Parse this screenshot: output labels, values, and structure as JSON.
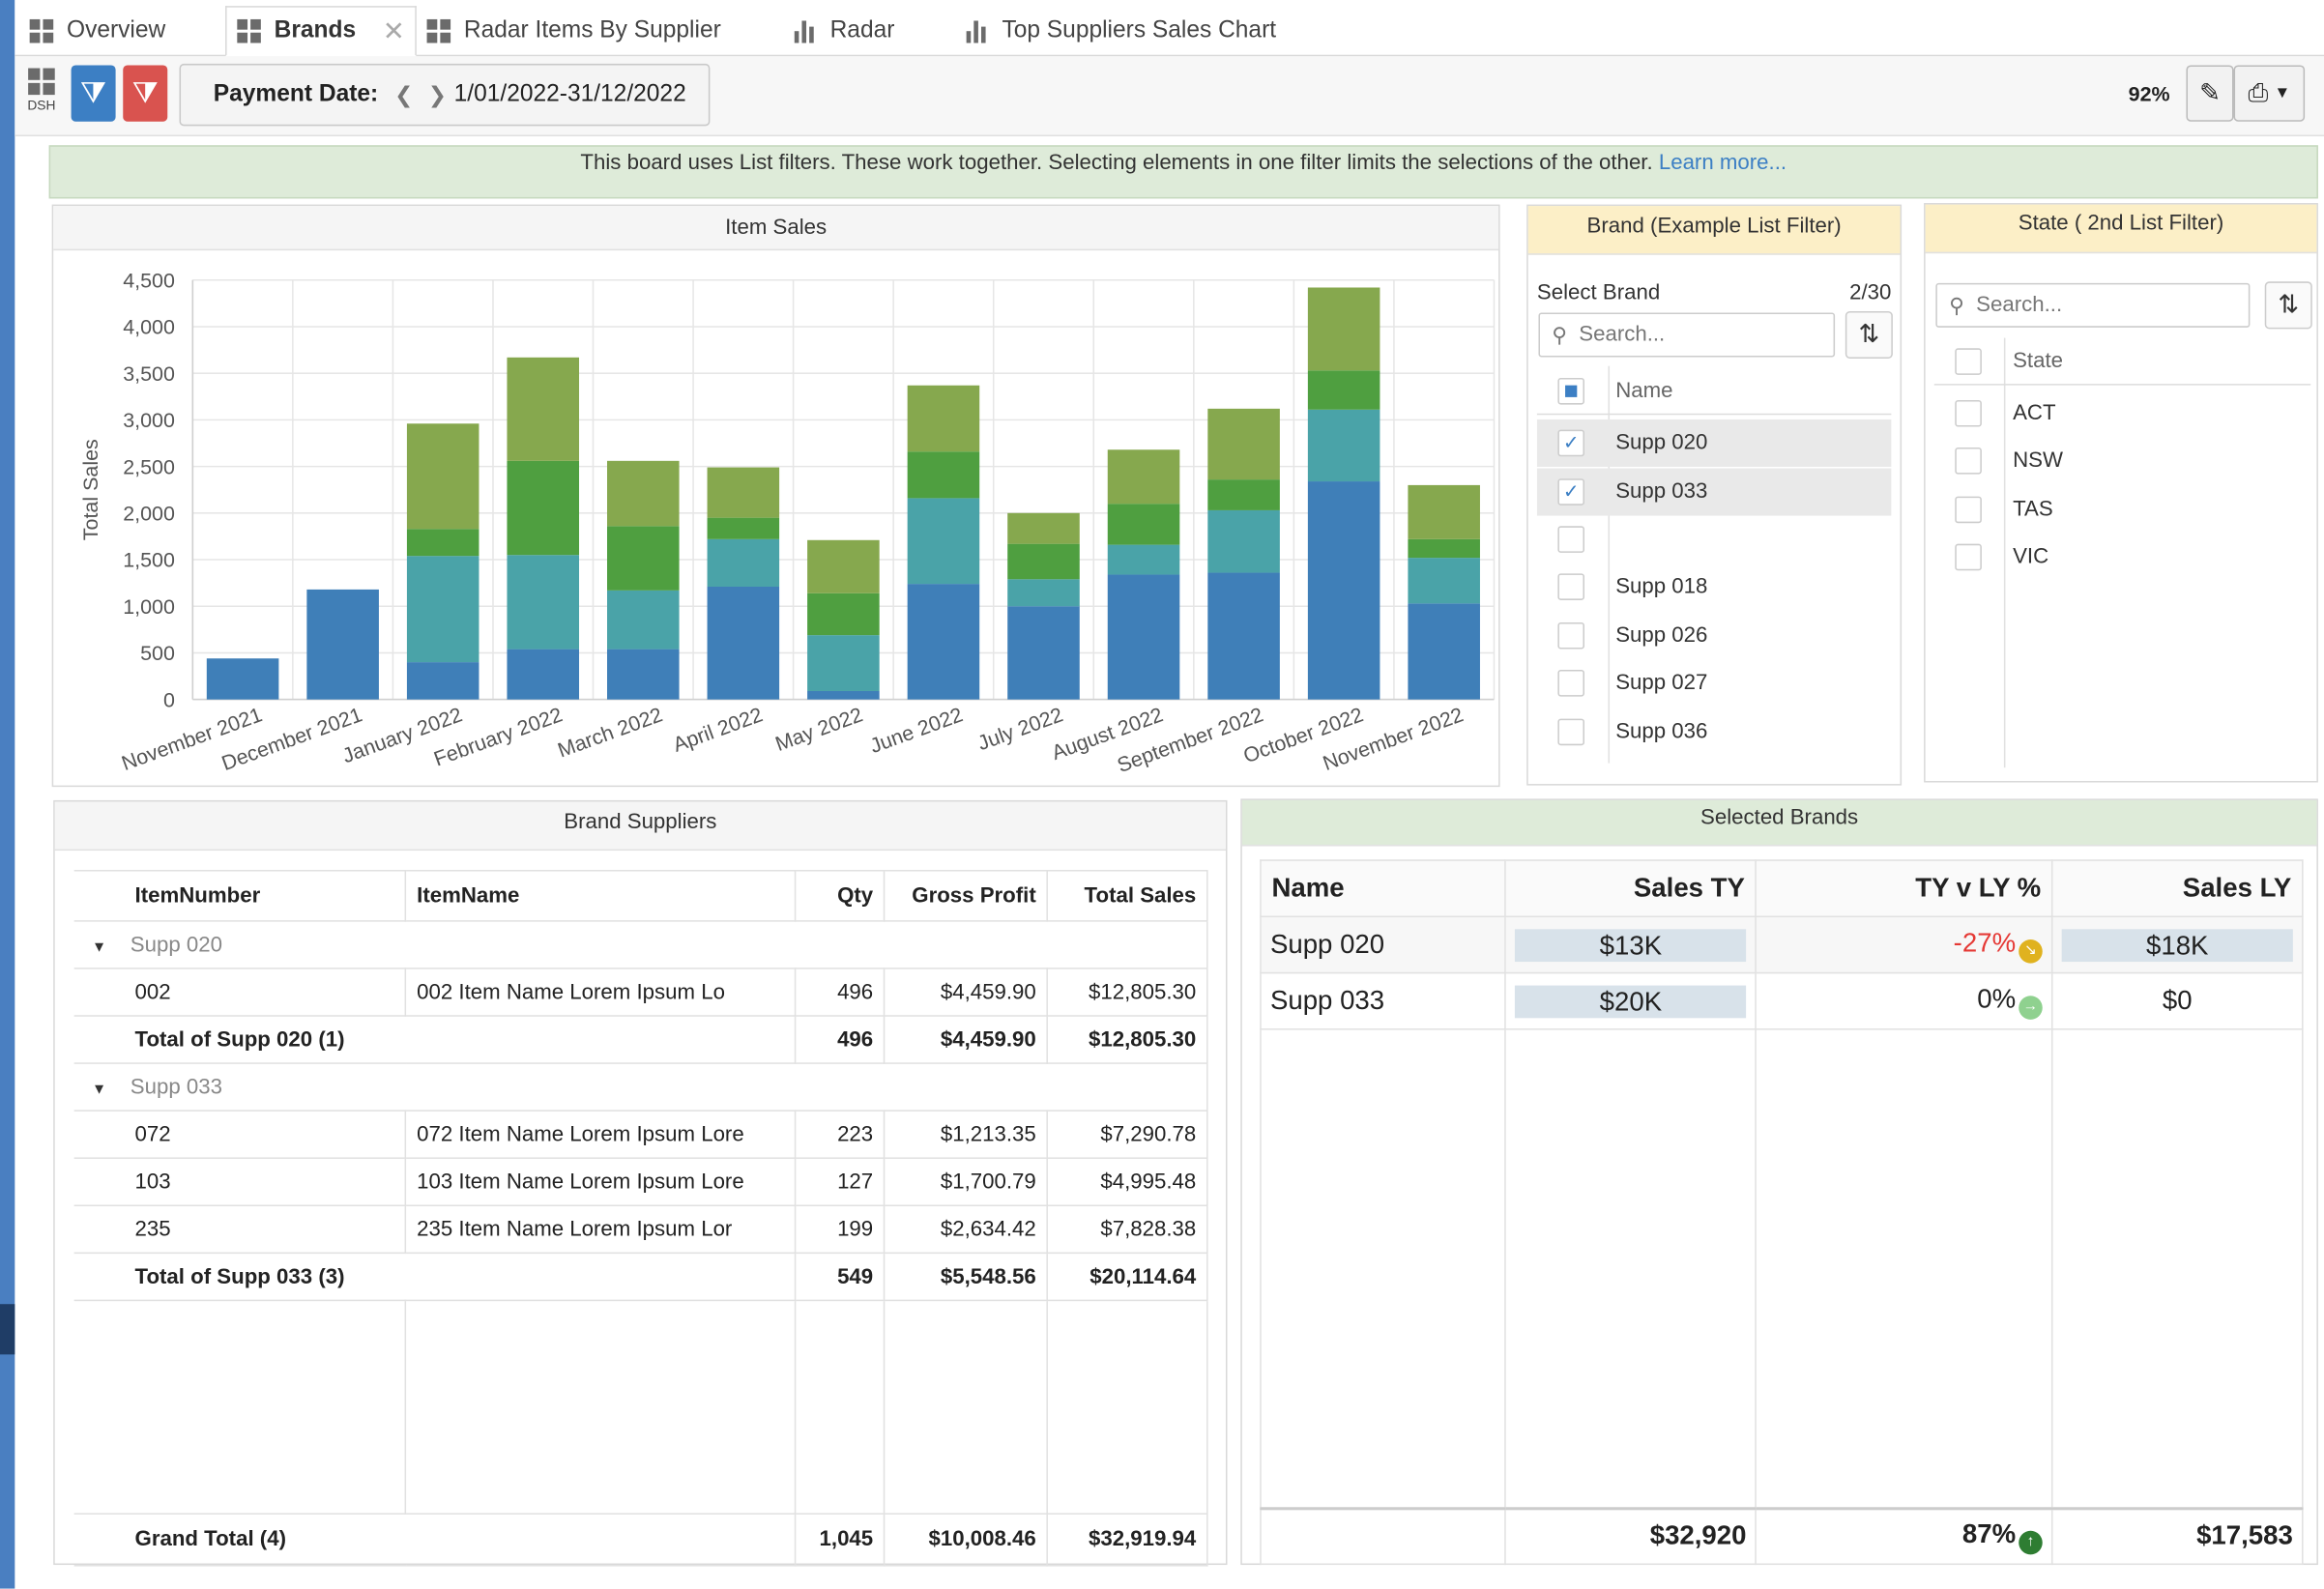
{
  "tabs": [
    {
      "label": "Overview",
      "icon": "grid-icon",
      "active": false
    },
    {
      "label": "Brands",
      "icon": "grid-icon",
      "active": true
    },
    {
      "label": "Radar Items By Supplier",
      "icon": "grid-icon",
      "active": false
    },
    {
      "label": "Radar",
      "icon": "bar-chart-icon",
      "active": false
    },
    {
      "label": "Top Suppliers Sales Chart",
      "icon": "bar-chart-icon",
      "active": false
    }
  ],
  "toolbar": {
    "dsh_label": "DSH",
    "date_label": "Payment Date:",
    "date_value": "1/01/2022-31/12/2022",
    "zoom": "92%"
  },
  "banner": {
    "text": "This board uses List filters. These work together. Selecting elements in one filter limits the selections of the other. ",
    "link": "Learn more..."
  },
  "item_sales": {
    "title": "Item Sales",
    "colors": [
      "#3f7fb8",
      "#4aa3a8",
      "#4f9f40",
      "#86a84e"
    ]
  },
  "chart_data": {
    "type": "bar",
    "stacked": true,
    "title": "Item Sales",
    "xlabel": "",
    "ylabel": "Total Sales",
    "ylim": [
      0,
      4500
    ],
    "yticks": [
      0,
      500,
      1000,
      1500,
      2000,
      2500,
      3000,
      3500,
      4000,
      4500
    ],
    "grid": true,
    "categories": [
      "November 2021",
      "December 2021",
      "January 2022",
      "February 2022",
      "March 2022",
      "April 2022",
      "May 2022",
      "June 2022",
      "July 2022",
      "August 2022",
      "September 2022",
      "October 2022",
      "November 2022"
    ],
    "series": [
      {
        "values": [
          440,
          1180,
          400,
          540,
          540,
          1210,
          90,
          1240,
          1000,
          1340,
          1360,
          2340,
          1030
        ]
      },
      {
        "values": [
          0,
          0,
          1140,
          1010,
          630,
          510,
          600,
          920,
          290,
          320,
          670,
          770,
          490
        ]
      },
      {
        "values": [
          0,
          0,
          290,
          1010,
          690,
          230,
          450,
          500,
          380,
          440,
          330,
          420,
          200
        ]
      },
      {
        "values": [
          0,
          0,
          1130,
          1110,
          700,
          540,
          570,
          710,
          330,
          580,
          760,
          890,
          580
        ]
      }
    ]
  },
  "brand_filter": {
    "title": "Brand (Example List Filter)",
    "select_label": "Select Brand",
    "count": "2/30",
    "search_placeholder": "Search...",
    "column": "Name",
    "items": [
      {
        "label": "Supp 020",
        "checked": true
      },
      {
        "label": "Supp 033",
        "checked": true
      },
      {
        "label": "",
        "checked": false
      },
      {
        "label": "Supp 018",
        "checked": false
      },
      {
        "label": "Supp 026",
        "checked": false
      },
      {
        "label": "Supp 027",
        "checked": false
      },
      {
        "label": "Supp 036",
        "checked": false
      }
    ]
  },
  "state_filter": {
    "title": "State ( 2nd List Filter)",
    "search_placeholder": "Search...",
    "column": "State",
    "items": [
      "ACT",
      "NSW",
      "TAS",
      "VIC"
    ]
  },
  "brand_suppliers": {
    "title": "Brand Suppliers",
    "columns": [
      "ItemNumber",
      "ItemName",
      "Qty",
      "Gross Profit",
      "Total Sales"
    ],
    "groups": [
      {
        "name": "Supp 020",
        "rows": [
          [
            "002",
            "002 Item Name Lorem Ipsum Lo",
            "496",
            "$4,459.90",
            "$12,805.30"
          ]
        ],
        "total": [
          "Total of Supp 020 (1)",
          "496",
          "$4,459.90",
          "$12,805.30"
        ]
      },
      {
        "name": "Supp 033",
        "rows": [
          [
            "072",
            "072 Item Name Lorem Ipsum Lore",
            "223",
            "$1,213.35",
            "$7,290.78"
          ],
          [
            "103",
            "103 Item Name Lorem Ipsum Lore",
            "127",
            "$1,700.79",
            "$4,995.48"
          ],
          [
            "235",
            "235 Item Name Lorem Ipsum Lor",
            "199",
            "$2,634.42",
            "$7,828.38"
          ]
        ],
        "total": [
          "Total of Supp 033 (3)",
          "549",
          "$5,548.56",
          "$20,114.64"
        ]
      }
    ],
    "grand_total": [
      "Grand Total (4)",
      "1,045",
      "$10,008.46",
      "$32,919.94"
    ]
  },
  "selected_brands": {
    "title": "Selected Brands",
    "columns": [
      "Name",
      "Sales TY",
      "TY v LY %",
      "Sales LY"
    ],
    "rows": [
      {
        "name": "Supp 020",
        "ty": "$13K",
        "pct": "-27%",
        "pct_color": "#e53935",
        "dot": "#e0b21f",
        "ly": "$18K",
        "ly_pill": true
      },
      {
        "name": "Supp 033",
        "ty": "$20K",
        "pct": "0%",
        "pct_color": "#222222",
        "dot": "#8fd18f",
        "ly": "$0",
        "ly_pill": false
      }
    ],
    "totals": {
      "ty": "$32,920",
      "pct": "87%",
      "dot": "#2e7d32",
      "ly": "$17,583"
    }
  }
}
